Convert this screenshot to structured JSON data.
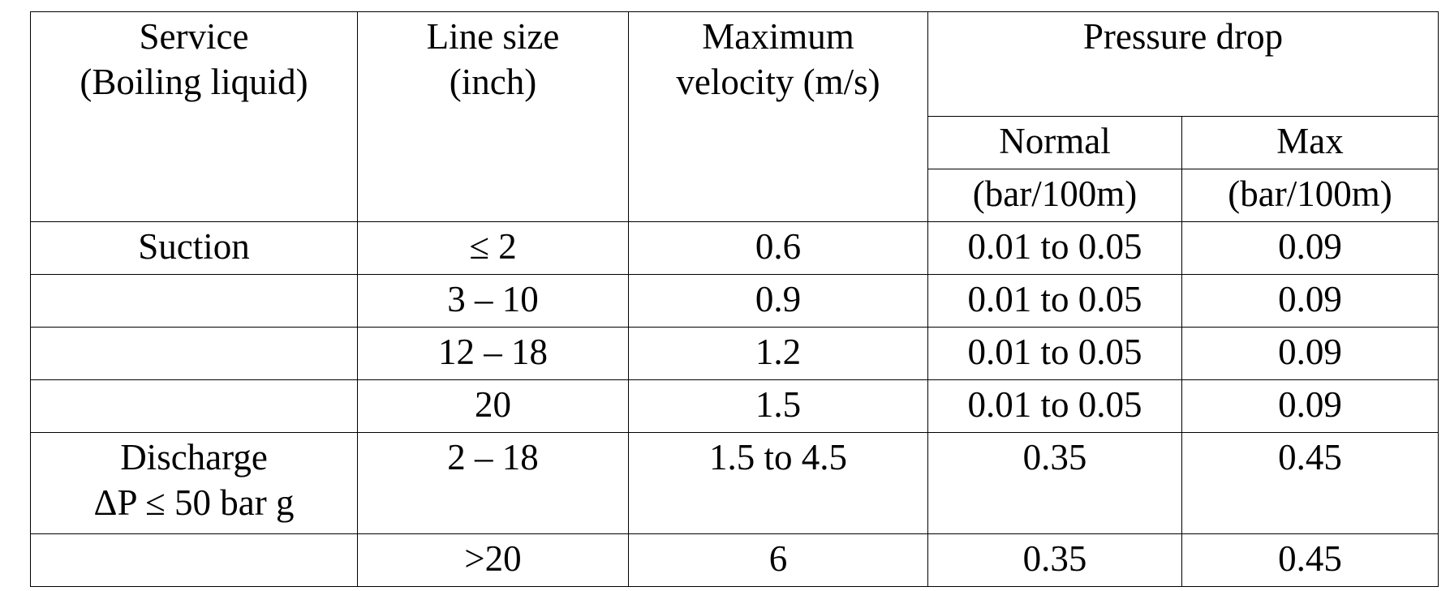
{
  "table": {
    "headers": {
      "service": [
        "Service",
        "(Boiling liquid)"
      ],
      "line_size": [
        "Line size",
        "(inch)"
      ],
      "max_velocity": [
        "Maximum",
        "velocity (m/s)"
      ],
      "pressure_drop": "Pressure drop",
      "normal": "Normal",
      "normal_unit": "(bar/100m)",
      "max": "Max",
      "max_unit": "(bar/100m)"
    },
    "rows": [
      {
        "service": "Suction",
        "line_size": "≤ 2",
        "velocity": "0.6",
        "normal": "0.01 to 0.05",
        "max": "0.09"
      },
      {
        "service": "",
        "line_size": "3 – 10",
        "velocity": "0.9",
        "normal": "0.01 to 0.05",
        "max": "0.09"
      },
      {
        "service": "",
        "line_size": "12 – 18",
        "velocity": "1.2",
        "normal": "0.01 to 0.05",
        "max": "0.09"
      },
      {
        "service": "",
        "line_size": "20",
        "velocity": "1.5",
        "normal": "0.01 to 0.05",
        "max": "0.09"
      },
      {
        "service_lines": [
          "Discharge",
          "ΔP ≤  50 bar g"
        ],
        "line_size": "2 – 18",
        "velocity": "1.5 to 4.5",
        "normal": "0.35",
        "max": "0.45"
      },
      {
        "service": "",
        "line_size": ">20",
        "velocity": "6",
        "normal": "0.35",
        "max": "0.45"
      }
    ]
  }
}
